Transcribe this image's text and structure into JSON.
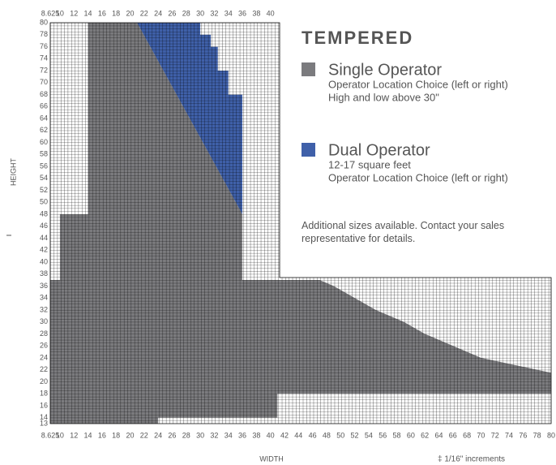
{
  "chart_data": {
    "type": "region",
    "title": "TEMPERED",
    "xlabel": "WIDTH",
    "ylabel": "HEIGHT",
    "footnote": "‡ 1/16\" increments",
    "note": "Additional sizes available. Contact your sales representative for details.",
    "xlim": [
      8.625,
      80
    ],
    "ylim": [
      13,
      80
    ],
    "xticks": [
      8.625,
      10,
      12,
      14,
      16,
      18,
      20,
      22,
      24,
      26,
      28,
      30,
      32,
      34,
      36,
      38,
      40,
      42,
      44,
      46,
      48,
      50,
      52,
      54,
      56,
      58,
      60,
      62,
      64,
      66,
      68,
      70,
      72,
      74,
      76,
      78,
      80
    ],
    "xticks_top": [
      8.625,
      10,
      12,
      14,
      16,
      18,
      20,
      22,
      24,
      26,
      28,
      30,
      32,
      34,
      36,
      38,
      40
    ],
    "yticks": [
      13,
      14,
      16,
      18,
      20,
      22,
      24,
      26,
      28,
      30,
      32,
      34,
      36,
      38,
      40,
      42,
      44,
      46,
      48,
      50,
      52,
      54,
      56,
      58,
      60,
      62,
      64,
      66,
      68,
      70,
      72,
      74,
      76,
      78,
      80
    ],
    "series": [
      {
        "name": "Single Operator",
        "color": "#7b7b7e",
        "details": [
          "Operator Location Choice (left or right)",
          "High and low above 30\""
        ],
        "widths": [
          8.625,
          8.625,
          10,
          10,
          14,
          14,
          21,
          36,
          36,
          47,
          49,
          52,
          55,
          59,
          62,
          66,
          70,
          74,
          78,
          80,
          80,
          41,
          41,
          24,
          24
        ],
        "heights": [
          13,
          37,
          37,
          48,
          48,
          80,
          80,
          48,
          37,
          37,
          36,
          34,
          32,
          30,
          28,
          26,
          24,
          23,
          22,
          21.5,
          18,
          18,
          14,
          14,
          13
        ]
      },
      {
        "name": "Dual Operator",
        "color": "#3f60a9",
        "details": [
          "12-17 square feet",
          "Operator Location Choice (left or right)"
        ],
        "widths": [
          21,
          30,
          30,
          31.5,
          31.5,
          32.5,
          32.5,
          34,
          34,
          36,
          36
        ],
        "heights": [
          80,
          80,
          78,
          78,
          76,
          76,
          72,
          72,
          68,
          68,
          48
        ]
      }
    ]
  }
}
